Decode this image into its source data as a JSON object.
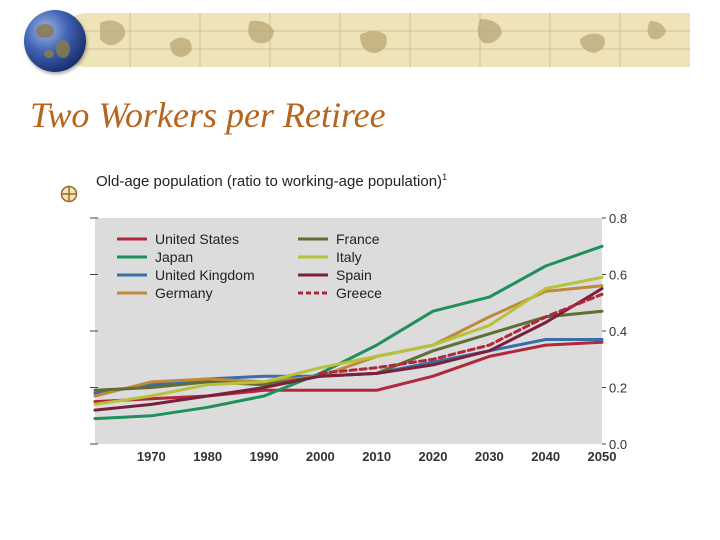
{
  "slide": {
    "title": "Two Workers per Retiree"
  },
  "chart_data": {
    "type": "line",
    "title": "Old-age population (ratio to working-age population)",
    "title_note": "1",
    "xlim": [
      1960,
      2050
    ],
    "ylim": [
      0.0,
      0.8
    ],
    "x_ticks": [
      "1970",
      "1980",
      "1990",
      "2000",
      "2010",
      "2020",
      "2030",
      "2040",
      "2050"
    ],
    "y_ticks": [
      "0.0",
      "0.2",
      "0.4",
      "0.6",
      "0.8"
    ],
    "grid": false,
    "legend_position": "top-left",
    "background": "#dcdcdc",
    "series": [
      {
        "name": "United States",
        "color": "#b0283a",
        "dash": false,
        "points": [
          [
            1960,
            0.15
          ],
          [
            1970,
            0.16
          ],
          [
            1980,
            0.17
          ],
          [
            1990,
            0.19
          ],
          [
            2000,
            0.19
          ],
          [
            2010,
            0.19
          ],
          [
            2020,
            0.24
          ],
          [
            2030,
            0.31
          ],
          [
            2040,
            0.35
          ],
          [
            2050,
            0.36
          ]
        ]
      },
      {
        "name": "Japan",
        "color": "#1f8f5c",
        "dash": false,
        "points": [
          [
            1960,
            0.09
          ],
          [
            1970,
            0.1
          ],
          [
            1980,
            0.13
          ],
          [
            1990,
            0.17
          ],
          [
            2000,
            0.25
          ],
          [
            2010,
            0.35
          ],
          [
            2020,
            0.47
          ],
          [
            2030,
            0.52
          ],
          [
            2040,
            0.63
          ],
          [
            2050,
            0.7
          ]
        ]
      },
      {
        "name": "United Kingdom",
        "color": "#3b6ea8",
        "dash": false,
        "points": [
          [
            1960,
            0.18
          ],
          [
            1970,
            0.21
          ],
          [
            1980,
            0.23
          ],
          [
            1990,
            0.24
          ],
          [
            2000,
            0.24
          ],
          [
            2010,
            0.25
          ],
          [
            2020,
            0.29
          ],
          [
            2030,
            0.33
          ],
          [
            2040,
            0.37
          ],
          [
            2050,
            0.37
          ]
        ]
      },
      {
        "name": "Germany",
        "color": "#c08a3e",
        "dash": false,
        "points": [
          [
            1960,
            0.17
          ],
          [
            1970,
            0.22
          ],
          [
            1980,
            0.23
          ],
          [
            1990,
            0.22
          ],
          [
            2000,
            0.24
          ],
          [
            2010,
            0.31
          ],
          [
            2020,
            0.35
          ],
          [
            2030,
            0.45
          ],
          [
            2040,
            0.54
          ],
          [
            2050,
            0.56
          ]
        ]
      },
      {
        "name": "France",
        "color": "#5e6e35",
        "dash": false,
        "points": [
          [
            1960,
            0.19
          ],
          [
            1970,
            0.2
          ],
          [
            1980,
            0.22
          ],
          [
            1990,
            0.21
          ],
          [
            2000,
            0.24
          ],
          [
            2010,
            0.25
          ],
          [
            2020,
            0.33
          ],
          [
            2030,
            0.39
          ],
          [
            2040,
            0.45
          ],
          [
            2050,
            0.47
          ]
        ]
      },
      {
        "name": "Italy",
        "color": "#b6c23a",
        "dash": false,
        "points": [
          [
            1960,
            0.14
          ],
          [
            1970,
            0.17
          ],
          [
            1980,
            0.21
          ],
          [
            1990,
            0.22
          ],
          [
            2000,
            0.27
          ],
          [
            2010,
            0.31
          ],
          [
            2020,
            0.35
          ],
          [
            2030,
            0.42
          ],
          [
            2040,
            0.55
          ],
          [
            2050,
            0.59
          ]
        ]
      },
      {
        "name": "Spain",
        "color": "#7a1f3d",
        "dash": false,
        "points": [
          [
            1960,
            0.12
          ],
          [
            1970,
            0.14
          ],
          [
            1980,
            0.17
          ],
          [
            1990,
            0.2
          ],
          [
            2000,
            0.24
          ],
          [
            2010,
            0.25
          ],
          [
            2020,
            0.28
          ],
          [
            2030,
            0.33
          ],
          [
            2040,
            0.43
          ],
          [
            2050,
            0.55
          ]
        ]
      },
      {
        "name": "Greece",
        "color": "#b0283a",
        "dash": true,
        "points": [
          [
            2000,
            0.25
          ],
          [
            2010,
            0.27
          ],
          [
            2020,
            0.3
          ],
          [
            2030,
            0.35
          ],
          [
            2040,
            0.45
          ],
          [
            2050,
            0.53
          ]
        ]
      }
    ]
  }
}
